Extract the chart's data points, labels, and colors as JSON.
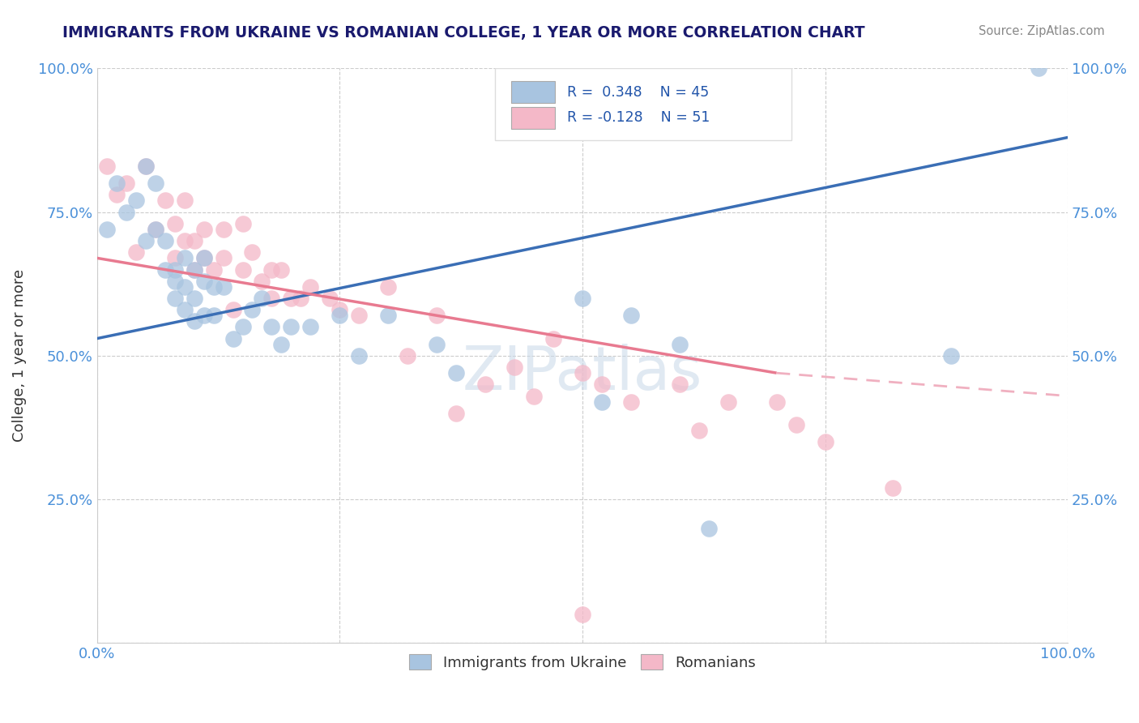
{
  "title": "IMMIGRANTS FROM UKRAINE VS ROMANIAN COLLEGE, 1 YEAR OR MORE CORRELATION CHART",
  "source": "Source: ZipAtlas.com",
  "ylabel": "College, 1 year or more",
  "xlim": [
    0.0,
    1.0
  ],
  "ylim": [
    0.0,
    1.0
  ],
  "xticks": [
    0.0,
    0.25,
    0.5,
    0.75,
    1.0
  ],
  "xticklabels": [
    "0.0%",
    "",
    "",
    "",
    "100.0%"
  ],
  "yticks": [
    0.0,
    0.25,
    0.5,
    0.75,
    1.0
  ],
  "yticklabels": [
    "",
    "25.0%",
    "50.0%",
    "75.0%",
    "100.0%"
  ],
  "ukraine_R": 0.348,
  "ukraine_N": 45,
  "romanian_R": -0.128,
  "romanian_N": 51,
  "ukraine_color": "#a8c4e0",
  "romanian_color": "#f4b8c8",
  "ukraine_line_color": "#3a6eb5",
  "romanian_line_solid_color": "#e87a90",
  "romanian_line_dash_color": "#f0b0c0",
  "watermark": "ZIPatlas",
  "legend_labels": [
    "Immigrants from Ukraine",
    "Romanians"
  ],
  "ukraine_x": [
    0.01,
    0.02,
    0.03,
    0.04,
    0.05,
    0.05,
    0.06,
    0.06,
    0.07,
    0.07,
    0.08,
    0.08,
    0.08,
    0.09,
    0.09,
    0.09,
    0.1,
    0.1,
    0.1,
    0.11,
    0.11,
    0.11,
    0.12,
    0.12,
    0.13,
    0.14,
    0.15,
    0.16,
    0.17,
    0.18,
    0.19,
    0.2,
    0.22,
    0.25,
    0.27,
    0.3,
    0.35,
    0.37,
    0.5,
    0.52,
    0.55,
    0.6,
    0.63,
    0.88,
    0.97
  ],
  "ukraine_y": [
    0.72,
    0.8,
    0.75,
    0.77,
    0.7,
    0.83,
    0.72,
    0.8,
    0.7,
    0.65,
    0.65,
    0.6,
    0.63,
    0.67,
    0.62,
    0.58,
    0.65,
    0.6,
    0.56,
    0.67,
    0.63,
    0.57,
    0.62,
    0.57,
    0.62,
    0.53,
    0.55,
    0.58,
    0.6,
    0.55,
    0.52,
    0.55,
    0.55,
    0.57,
    0.5,
    0.57,
    0.52,
    0.47,
    0.6,
    0.42,
    0.57,
    0.52,
    0.2,
    0.5,
    1.0
  ],
  "romanian_x": [
    0.01,
    0.02,
    0.03,
    0.04,
    0.05,
    0.06,
    0.07,
    0.08,
    0.08,
    0.09,
    0.09,
    0.1,
    0.1,
    0.11,
    0.11,
    0.12,
    0.13,
    0.13,
    0.14,
    0.15,
    0.15,
    0.16,
    0.17,
    0.18,
    0.18,
    0.19,
    0.2,
    0.21,
    0.22,
    0.24,
    0.25,
    0.27,
    0.3,
    0.32,
    0.35,
    0.37,
    0.4,
    0.43,
    0.45,
    0.47,
    0.5,
    0.52,
    0.55,
    0.6,
    0.62,
    0.65,
    0.7,
    0.72,
    0.75,
    0.82,
    0.5
  ],
  "romanian_y": [
    0.83,
    0.78,
    0.8,
    0.68,
    0.83,
    0.72,
    0.77,
    0.73,
    0.67,
    0.77,
    0.7,
    0.7,
    0.65,
    0.72,
    0.67,
    0.65,
    0.67,
    0.72,
    0.58,
    0.73,
    0.65,
    0.68,
    0.63,
    0.65,
    0.6,
    0.65,
    0.6,
    0.6,
    0.62,
    0.6,
    0.58,
    0.57,
    0.62,
    0.5,
    0.57,
    0.4,
    0.45,
    0.48,
    0.43,
    0.53,
    0.47,
    0.45,
    0.42,
    0.45,
    0.37,
    0.42,
    0.42,
    0.38,
    0.35,
    0.27,
    0.05
  ],
  "ukraine_line_x0": 0.0,
  "ukraine_line_y0": 0.53,
  "ukraine_line_x1": 1.0,
  "ukraine_line_y1": 0.88,
  "romanian_line_x0": 0.0,
  "romanian_line_y0": 0.67,
  "romanian_line_xsolid": 0.7,
  "romanian_line_ysolid": 0.47,
  "romanian_line_x1": 1.0,
  "romanian_line_y1": 0.43
}
